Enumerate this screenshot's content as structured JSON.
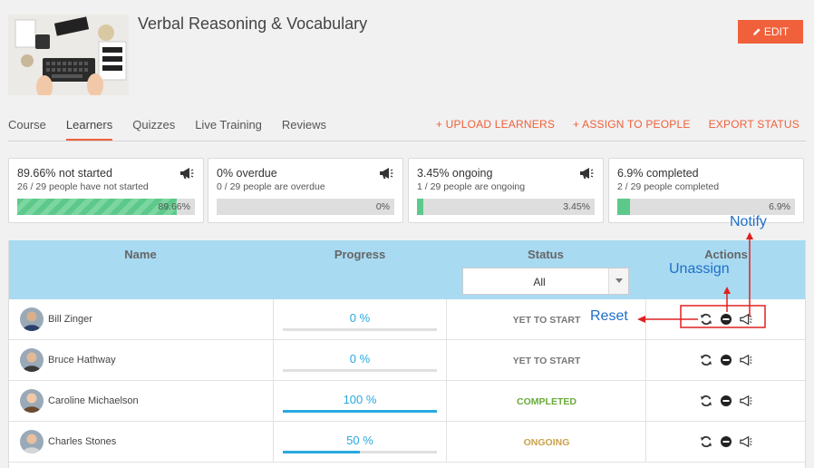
{
  "course": {
    "title": "Verbal Reasoning & Vocabulary",
    "edit_label": "EDIT"
  },
  "tabs": [
    {
      "label": "Course",
      "active": false
    },
    {
      "label": "Learners",
      "active": true
    },
    {
      "label": "Quizzes",
      "active": false
    },
    {
      "label": "Live Training",
      "active": false
    },
    {
      "label": "Reviews",
      "active": false
    }
  ],
  "top_actions": {
    "upload": "+ UPLOAD LEARNERS",
    "assign": "+ ASSIGN TO PEOPLE",
    "export": "EXPORT STATUS"
  },
  "stats": [
    {
      "title": "89.66% not started",
      "sub": "26 / 29 people have not started",
      "pct_label": "89.66%",
      "fraction": 0.8966,
      "striped": true,
      "icon": "megaphone-icon"
    },
    {
      "title": "0% overdue",
      "sub": "0 / 29 people are overdue",
      "pct_label": "0%",
      "fraction": 0,
      "striped": false,
      "icon": "megaphone-icon"
    },
    {
      "title": "3.45% ongoing",
      "sub": "1 / 29 people are ongoing",
      "pct_label": "3.45%",
      "fraction": 0.0345,
      "striped": false,
      "icon": "megaphone-icon"
    },
    {
      "title": "6.9% completed",
      "sub": "2 / 29 people completed",
      "pct_label": "6.9%",
      "fraction": 0.069,
      "striped": false,
      "icon": "megaphone-icon"
    }
  ],
  "table": {
    "headers": {
      "name": "Name",
      "progress": "Progress",
      "status": "Status",
      "actions": "Actions"
    },
    "status_filter": "All",
    "rows": [
      {
        "name": "Bill Zinger",
        "progress_label": "0 %",
        "progress": 0,
        "status": "YET TO START",
        "status_color": "#777777"
      },
      {
        "name": "Bruce Hathway",
        "progress_label": "0 %",
        "progress": 0,
        "status": "YET TO START",
        "status_color": "#777777"
      },
      {
        "name": "Caroline Michaelson",
        "progress_label": "100 %",
        "progress": 1.0,
        "status": "COMPLETED",
        "status_color": "#6aaa3a"
      },
      {
        "name": "Charles Stones",
        "progress_label": "50 %",
        "progress": 0.5,
        "status": "ONGOING",
        "status_color": "#c9a14a"
      }
    ]
  },
  "annotations": {
    "notify": "Notify",
    "unassign": "Unassign",
    "reset": "Reset"
  },
  "colors": {
    "accent": "#f0603a",
    "header_bg": "#a8daf2",
    "progress": "#29a8e0",
    "annotation": "#1f6fc9",
    "highlight": "#e02020"
  }
}
